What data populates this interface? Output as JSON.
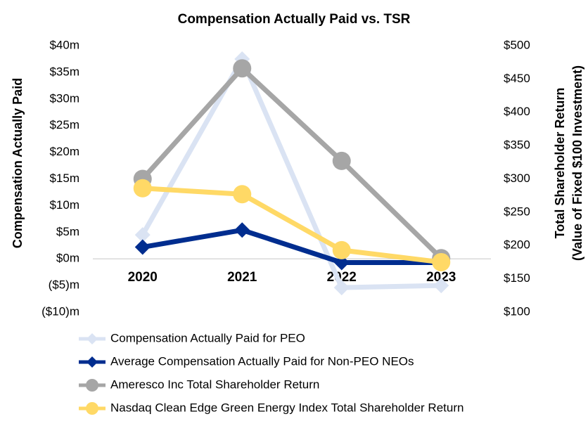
{
  "chart_data": {
    "type": "line",
    "title": "Compensation Actually Paid vs. TSR",
    "ylabel": "Compensation Actually Paid",
    "y2label": [
      "Total Shareholder Return",
      "(Value of Fixed $100 Investment)"
    ],
    "categories": [
      "2020",
      "2021",
      "2022",
      "2023"
    ],
    "ylim": [
      -10,
      40
    ],
    "yticks": [
      {
        "value": -10,
        "label": "($10)m"
      },
      {
        "value": -5,
        "label": "($5)m"
      },
      {
        "value": 0,
        "label": "$0m"
      },
      {
        "value": 5,
        "label": "$5m"
      },
      {
        "value": 10,
        "label": "$10m"
      },
      {
        "value": 15,
        "label": "$15m"
      },
      {
        "value": 20,
        "label": "$20m"
      },
      {
        "value": 25,
        "label": "$25m"
      },
      {
        "value": 30,
        "label": "$30m"
      },
      {
        "value": 35,
        "label": "$35m"
      },
      {
        "value": 40,
        "label": "$40m"
      }
    ],
    "y2lim": [
      100,
      500
    ],
    "y2ticks": [
      {
        "value": 100,
        "label": "$100"
      },
      {
        "value": 150,
        "label": "$150"
      },
      {
        "value": 200,
        "label": "$200"
      },
      {
        "value": 250,
        "label": "$250"
      },
      {
        "value": 300,
        "label": "$300"
      },
      {
        "value": 350,
        "label": "$350"
      },
      {
        "value": 400,
        "label": "$400"
      },
      {
        "value": 450,
        "label": "$450"
      },
      {
        "value": 500,
        "label": "$500"
      }
    ],
    "legend": "bottom",
    "series": [
      {
        "name": "Compensation Actually Paid for PEO",
        "color": "#dae3f3",
        "marker": "diamond",
        "values": [
          4.5,
          37.5,
          -5.4,
          -5.0
        ]
      },
      {
        "name": "Average Compensation Actually Paid for Non-PEO NEOs",
        "color": "#002d8f",
        "marker": "diamond",
        "values": [
          2.2,
          5.4,
          -0.7,
          -0.7
        ]
      },
      {
        "name": "Ameresco Inc Total Shareholder Return",
        "color": "#a6a6a6",
        "marker": "circle",
        "axis": "y2",
        "values": [
          300,
          466,
          327,
          181
        ]
      },
      {
        "name": "Nasdaq Clean Edge Green Energy Index Total Shareholder Return",
        "color": "#ffd966",
        "marker": "circle",
        "axis": "y2",
        "values": [
          286,
          277,
          193,
          175
        ]
      }
    ]
  }
}
